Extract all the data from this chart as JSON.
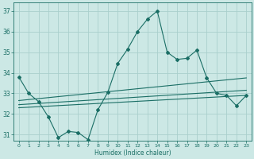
{
  "xlabel": "Humidex (Indice chaleur)",
  "ylabel": "",
  "background_color": "#cce8e5",
  "grid_color": "#aacfcc",
  "line_color": "#1a6e65",
  "xlim": [
    -0.5,
    23.5
  ],
  "ylim": [
    30.7,
    37.4
  ],
  "yticks": [
    31,
    32,
    33,
    34,
    35,
    36,
    37
  ],
  "xticks": [
    0,
    1,
    2,
    3,
    4,
    5,
    6,
    7,
    8,
    9,
    10,
    11,
    12,
    13,
    14,
    15,
    16,
    17,
    18,
    19,
    20,
    21,
    22,
    23
  ],
  "main_x": [
    0,
    1,
    2,
    3,
    4,
    5,
    6,
    7,
    8,
    9,
    10,
    11,
    12,
    13,
    14,
    15,
    16,
    17,
    18,
    19,
    20,
    21,
    22,
    23
  ],
  "main_y": [
    33.8,
    33.0,
    32.6,
    31.85,
    30.85,
    31.15,
    31.1,
    30.75,
    32.2,
    33.05,
    34.45,
    35.15,
    36.0,
    36.6,
    37.0,
    35.0,
    34.65,
    34.7,
    35.1,
    33.75,
    33.0,
    32.9,
    32.4,
    32.9
  ],
  "line2_x": [
    0,
    23
  ],
  "line2_y": [
    32.65,
    33.75
  ],
  "line3_x": [
    0,
    23
  ],
  "line3_y": [
    32.45,
    33.15
  ],
  "line4_x": [
    0,
    23
  ],
  "line4_y": [
    32.3,
    32.9
  ]
}
